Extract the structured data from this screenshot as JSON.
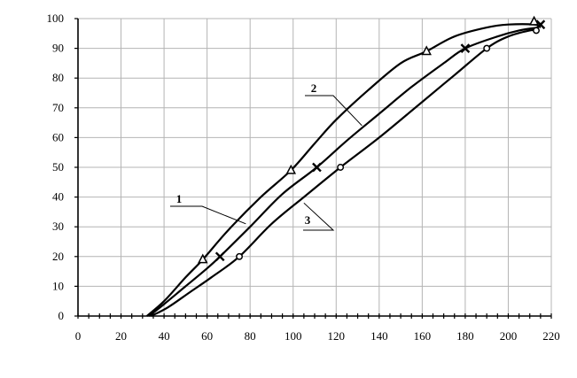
{
  "chart_data": {
    "type": "line",
    "title": "",
    "xlabel": "",
    "ylabel": "",
    "xlim": [
      0,
      220
    ],
    "ylim": [
      0,
      100
    ],
    "x_ticks": [
      0,
      20,
      40,
      60,
      80,
      100,
      120,
      140,
      160,
      180,
      200,
      220
    ],
    "y_ticks": [
      0,
      10,
      20,
      30,
      40,
      50,
      60,
      70,
      80,
      90,
      100
    ],
    "grid": true,
    "line_color": "#000000",
    "grid_color": "#b4b4b4",
    "series": [
      {
        "name": "1",
        "marker": "triangle",
        "points": [
          [
            32,
            0
          ],
          [
            40,
            5
          ],
          [
            50,
            13
          ],
          [
            58,
            19
          ],
          [
            70,
            29
          ],
          [
            85,
            40
          ],
          [
            99,
            49
          ],
          [
            110,
            58
          ],
          [
            120,
            66
          ],
          [
            135,
            76
          ],
          [
            150,
            85
          ],
          [
            162,
            89
          ],
          [
            175,
            94
          ],
          [
            190,
            97
          ],
          [
            200,
            98
          ],
          [
            212,
            98
          ],
          [
            215,
            97
          ]
        ],
        "marker_points": [
          [
            58,
            19
          ],
          [
            99,
            49
          ],
          [
            162,
            89
          ],
          [
            212,
            99
          ]
        ]
      },
      {
        "name": "2",
        "marker": "cross",
        "points": [
          [
            33,
            0
          ],
          [
            40,
            4
          ],
          [
            50,
            10
          ],
          [
            60,
            16
          ],
          [
            66,
            20
          ],
          [
            80,
            30
          ],
          [
            95,
            41
          ],
          [
            111,
            50
          ],
          [
            125,
            59
          ],
          [
            140,
            68
          ],
          [
            155,
            77
          ],
          [
            170,
            85
          ],
          [
            180,
            90
          ],
          [
            195,
            94
          ],
          [
            205,
            96
          ],
          [
            214,
            97
          ]
        ],
        "marker_points": [
          [
            66,
            20
          ],
          [
            111,
            50
          ],
          [
            180,
            90
          ],
          [
            215,
            98
          ]
        ]
      },
      {
        "name": "3",
        "marker": "circle",
        "points": [
          [
            34,
            0
          ],
          [
            42,
            3
          ],
          [
            52,
            8
          ],
          [
            62,
            13
          ],
          [
            75,
            20
          ],
          [
            90,
            31
          ],
          [
            105,
            40
          ],
          [
            122,
            50
          ],
          [
            140,
            60
          ],
          [
            160,
            72
          ],
          [
            175,
            81
          ],
          [
            190,
            90
          ],
          [
            200,
            94
          ],
          [
            210,
            96
          ],
          [
            214,
            96
          ]
        ],
        "marker_points": [
          [
            75,
            20
          ],
          [
            122,
            50
          ],
          [
            190,
            90
          ],
          [
            213,
            96
          ]
        ]
      }
    ],
    "annotations": [
      {
        "text": "1",
        "series": "1"
      },
      {
        "text": "2",
        "series": "2"
      },
      {
        "text": "3",
        "series": "3"
      }
    ]
  }
}
